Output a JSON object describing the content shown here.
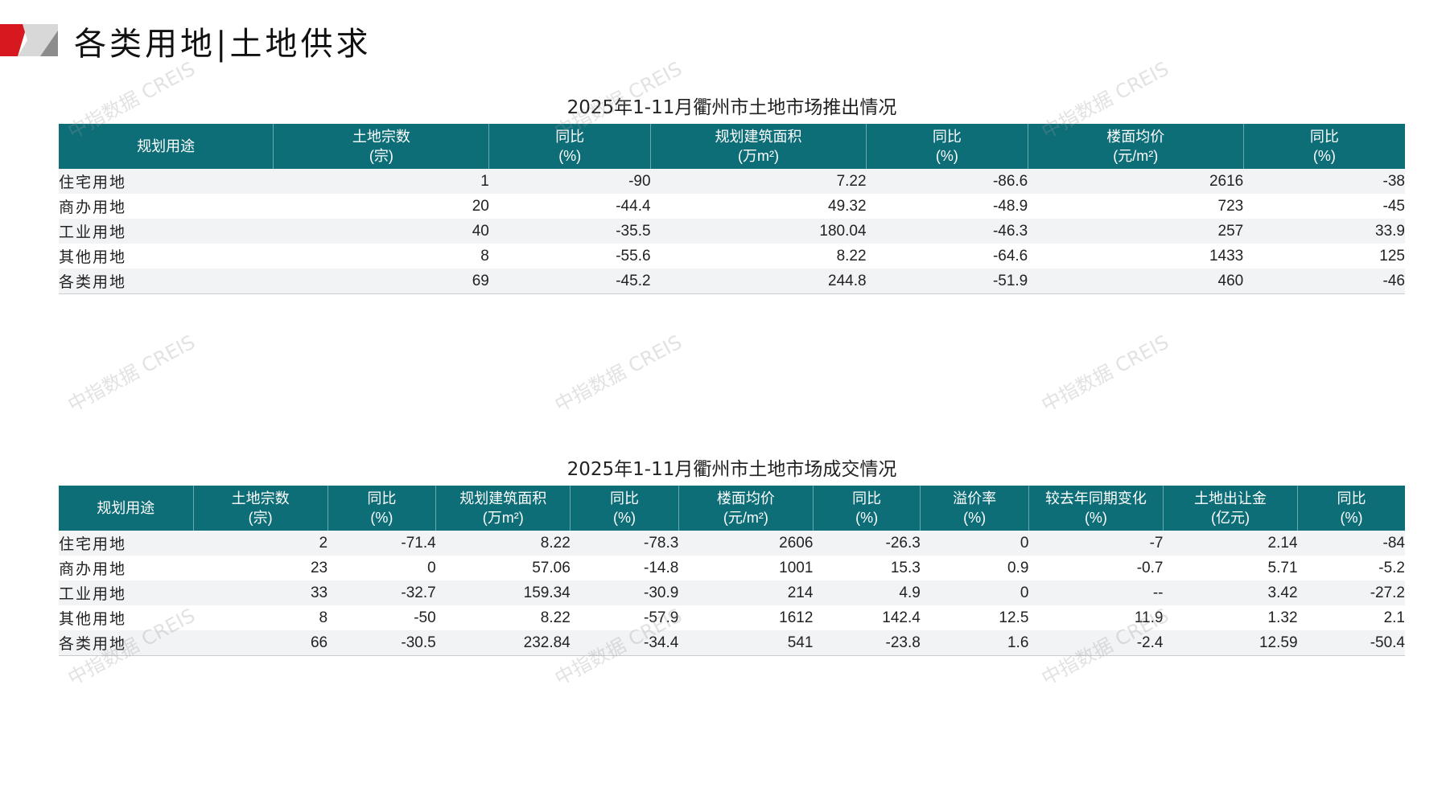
{
  "page": {
    "title": "各类用地|土地供求",
    "watermark": "中指数据 CREIS"
  },
  "colors": {
    "header_bg": "#0e6e78",
    "logo_red": "#d7191f",
    "logo_gray": "#b8b8b8"
  },
  "supply": {
    "title": "2025年1-11月衢州市土地市场推出情况",
    "headers": [
      [
        "规划用途",
        ""
      ],
      [
        "土地宗数",
        "(宗)"
      ],
      [
        "同比",
        "(%)"
      ],
      [
        "规划建筑面积",
        "(万m²)"
      ],
      [
        "同比",
        "(%)"
      ],
      [
        "楼面均价",
        "(元/m²)"
      ],
      [
        "同比",
        "(%)"
      ]
    ],
    "rows": [
      [
        "住宅用地",
        "1",
        "-90",
        "7.22",
        "-86.6",
        "2616",
        "-38"
      ],
      [
        "商办用地",
        "20",
        "-44.4",
        "49.32",
        "-48.9",
        "723",
        "-45"
      ],
      [
        "工业用地",
        "40",
        "-35.5",
        "180.04",
        "-46.3",
        "257",
        "33.9"
      ],
      [
        "其他用地",
        "8",
        "-55.6",
        "8.22",
        "-64.6",
        "1433",
        "125"
      ],
      [
        "各类用地",
        "69",
        "-45.2",
        "244.8",
        "-51.9",
        "460",
        "-46"
      ]
    ]
  },
  "deal": {
    "title": "2025年1-11月衢州市土地市场成交情况",
    "headers": [
      [
        "规划用途",
        ""
      ],
      [
        "土地宗数",
        "(宗)"
      ],
      [
        "同比",
        "(%)"
      ],
      [
        "规划建筑面积",
        "(万m²)"
      ],
      [
        "同比",
        "(%)"
      ],
      [
        "楼面均价",
        "(元/m²)"
      ],
      [
        "同比",
        "(%)"
      ],
      [
        "溢价率",
        "(%)"
      ],
      [
        "较去年同期变化",
        "(%)"
      ],
      [
        "土地出让金",
        "(亿元)"
      ],
      [
        "同比",
        "(%)"
      ]
    ],
    "rows": [
      [
        "住宅用地",
        "2",
        "-71.4",
        "8.22",
        "-78.3",
        "2606",
        "-26.3",
        "0",
        "-7",
        "2.14",
        "-84"
      ],
      [
        "商办用地",
        "23",
        "0",
        "57.06",
        "-14.8",
        "1001",
        "15.3",
        "0.9",
        "-0.7",
        "5.71",
        "-5.2"
      ],
      [
        "工业用地",
        "33",
        "-32.7",
        "159.34",
        "-30.9",
        "214",
        "4.9",
        "0",
        "--",
        "3.42",
        "-27.2"
      ],
      [
        "其他用地",
        "8",
        "-50",
        "8.22",
        "-57.9",
        "1612",
        "142.4",
        "12.5",
        "11.9",
        "1.32",
        "2.1"
      ],
      [
        "各类用地",
        "66",
        "-30.5",
        "232.84",
        "-34.4",
        "541",
        "-23.8",
        "1.6",
        "-2.4",
        "12.59",
        "-50.4"
      ]
    ]
  }
}
